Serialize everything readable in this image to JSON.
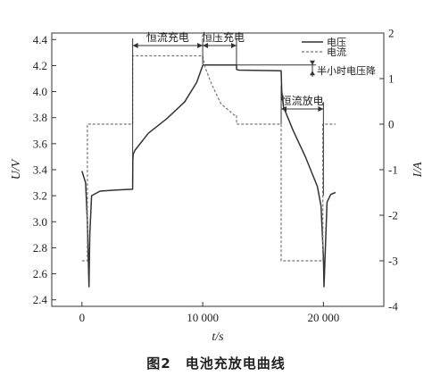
{
  "caption": "图2　电池充放电曲线",
  "chart_data": {
    "type": "line",
    "xlabel": "t/s",
    "ylabel_left": "U/V",
    "ylabel_right": "I/A",
    "xlim": [
      -2500,
      25000
    ],
    "ylim_left": [
      2.35,
      4.45
    ],
    "ylim_right": [
      -4,
      2
    ],
    "x_ticks": [
      0,
      10000,
      20000
    ],
    "x_tick_labels": [
      "0",
      "10 000",
      "20 000"
    ],
    "y_left_ticks": [
      2.4,
      2.6,
      2.8,
      3.0,
      3.2,
      3.4,
      3.6,
      3.8,
      4.0,
      4.2,
      4.4
    ],
    "y_left_tick_labels": [
      "2.4",
      "2.6",
      "2.8",
      "3.0",
      "3.2",
      "3.4",
      "3.6",
      "3.8",
      "4.0",
      "4.2",
      "4.4"
    ],
    "y_right_ticks": [
      2,
      1,
      0,
      -1,
      -2,
      -3,
      -4
    ],
    "y_right_tick_labels": [
      "2",
      "1",
      "0",
      "-1",
      "-2",
      "-3",
      "-4"
    ],
    "grid": false,
    "legend_position": "top-right",
    "series": [
      {
        "name": "电压",
        "axis": "left",
        "style": "solid",
        "color": "#333333",
        "x": [
          0,
          300,
          450,
          520,
          580,
          650,
          800,
          1500,
          3000,
          4200,
          4210,
          4250,
          4400,
          5500,
          7000,
          8500,
          9500,
          10000,
          10050,
          11000,
          12000,
          12800,
          12810,
          13000,
          16500,
          16550,
          16700,
          17500,
          18500,
          19500,
          19800,
          20000,
          20050,
          20300,
          20600,
          21000
        ],
        "y": [
          3.39,
          3.3,
          3.0,
          2.72,
          2.5,
          2.9,
          3.2,
          3.235,
          3.245,
          3.25,
          3.48,
          3.52,
          3.55,
          3.68,
          3.79,
          3.92,
          4.07,
          4.2,
          4.205,
          4.205,
          4.205,
          4.205,
          4.17,
          4.165,
          4.16,
          4.0,
          3.88,
          3.7,
          3.5,
          3.27,
          3.12,
          2.72,
          2.5,
          3.15,
          3.21,
          3.225
        ]
      },
      {
        "name": "电流",
        "axis": "right",
        "style": "dashed",
        "color": "#777777",
        "x": [
          0,
          450,
          450,
          4200,
          4200,
          10000,
          10200,
          10700,
          11500,
          12600,
          12800,
          12810,
          16500,
          16500,
          19950,
          19950,
          21000
        ],
        "y": [
          -3.0,
          -3.0,
          0.0,
          0.0,
          1.5,
          1.5,
          1.25,
          0.9,
          0.45,
          0.2,
          0.2,
          0.0,
          0.0,
          -3.0,
          -3.0,
          0.0,
          0.0
        ]
      }
    ],
    "annotations": [
      {
        "text": "恒流充电",
        "span": [
          4200,
          10000
        ]
      },
      {
        "text": "恒压充电",
        "span": [
          10000,
          12800
        ]
      },
      {
        "text": "半小时电压降"
      },
      {
        "text": "恒流放电",
        "span": [
          16500,
          20000
        ]
      }
    ]
  }
}
